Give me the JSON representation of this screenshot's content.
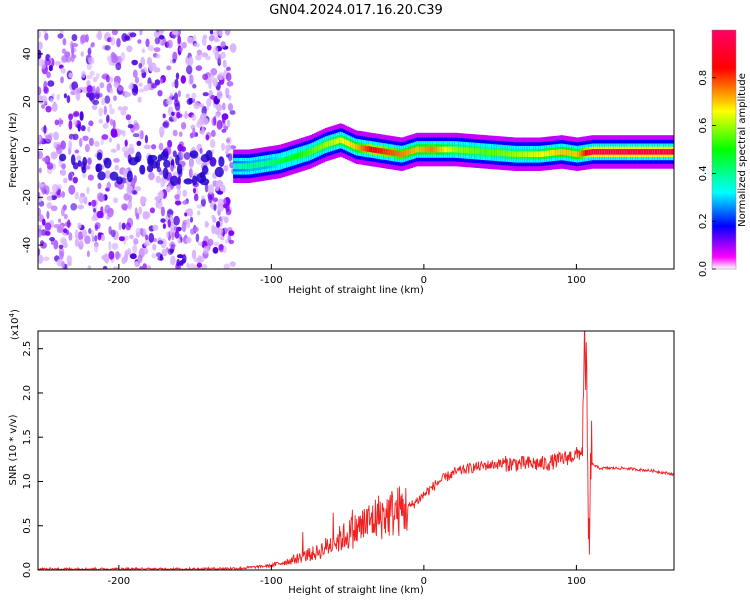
{
  "title": "GN04.2024.017.16.20.C39",
  "chart_data": [
    {
      "type": "heatmap",
      "xlabel": "Height of straight line (km)",
      "ylabel": "Frequency (Hz)",
      "xlim": [
        -253,
        164
      ],
      "ylim": [
        -50,
        50
      ],
      "x_ticks": [
        -200,
        -100,
        0,
        100
      ],
      "x_tick_labels": [
        "-200",
        "-100",
        "0",
        "100"
      ],
      "y_ticks": [
        -40,
        -20,
        0,
        20,
        40
      ],
      "y_tick_labels": [
        "-40",
        "-20",
        "0",
        "20",
        "40"
      ],
      "colorbar": {
        "label": "Normalized spectral amplitude",
        "range": [
          0,
          1
        ],
        "ticks": [
          0.0,
          0.2,
          0.4,
          0.6,
          0.8
        ],
        "tick_labels": [
          "0.0",
          "0.2",
          "0.4",
          "0.6",
          "0.8"
        ],
        "colors": [
          "#ffffff",
          "#ff00ff",
          "#0000ff",
          "#00ffff",
          "#00ff00",
          "#ffff00",
          "#ff0000"
        ]
      },
      "ridge": {
        "x": [
          -125,
          -115,
          -105,
          -95,
          -85,
          -75,
          -65,
          -55,
          -45,
          -35,
          -25,
          -15,
          -5,
          5,
          20,
          40,
          60,
          75,
          90,
          100,
          110,
          130,
          164
        ],
        "y": [
          -7,
          -7,
          -6,
          -5,
          -3,
          -1,
          2,
          4,
          1,
          0,
          -1,
          -2,
          0,
          0,
          0,
          -1,
          -2,
          -2,
          -1,
          -2,
          -1,
          -1,
          -1
        ],
        "amplitude": [
          0.35,
          0.4,
          0.4,
          0.45,
          0.5,
          0.55,
          0.6,
          0.65,
          0.7,
          0.85,
          0.8,
          0.75,
          0.7,
          0.75,
          0.6,
          0.55,
          0.6,
          0.65,
          0.7,
          0.7,
          0.95,
          0.95,
          0.95
        ]
      },
      "noise_region_x": [
        -253,
        -125
      ],
      "grid": false
    },
    {
      "type": "line",
      "xlabel": "Height of straight line (km)",
      "ylabel": "SNR (10 * v/v)",
      "y_multiplier": "(x10",
      "y_multiplier_exp": "4",
      "y_multiplier_close": ")",
      "xlim": [
        -253,
        164
      ],
      "ylim": [
        0,
        2.7
      ],
      "x_ticks": [
        -200,
        -100,
        0,
        100
      ],
      "x_tick_labels": [
        "-200",
        "-100",
        "0",
        "100"
      ],
      "y_ticks": [
        0.0,
        0.5,
        1.0,
        1.5,
        2.0,
        2.5
      ],
      "y_tick_labels": [
        "0.0",
        "0.5",
        "1.0",
        "1.5",
        "2.0",
        "2.5"
      ],
      "series": [
        {
          "color": "#ee2222",
          "x": [
            -253,
            -200,
            -150,
            -120,
            -100,
            -85,
            -70,
            -60,
            -50,
            -40,
            -30,
            -20,
            -10,
            0,
            10,
            20,
            30,
            40,
            50,
            60,
            70,
            80,
            90,
            100,
            104,
            106,
            108,
            110,
            115,
            130,
            150,
            164
          ],
          "y": [
            0.01,
            0.01,
            0.01,
            0.02,
            0.05,
            0.12,
            0.2,
            0.3,
            0.4,
            0.5,
            0.6,
            0.65,
            0.7,
            0.85,
            1.0,
            1.1,
            1.15,
            1.18,
            1.2,
            1.2,
            1.2,
            1.2,
            1.25,
            1.3,
            1.35,
            2.7,
            0.2,
            1.2,
            1.15,
            1.15,
            1.12,
            1.08
          ]
        }
      ],
      "grid": false
    }
  ]
}
